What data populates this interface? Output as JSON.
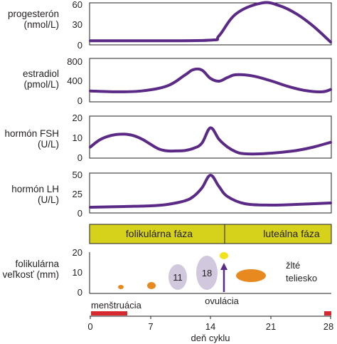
{
  "colors": {
    "curve": "#5b2a86",
    "phase_fill": "#d6d21b",
    "follicle_gray": "#d2c8dd",
    "follicle_orange": "#e8891f",
    "ovum_yellow": "#f2e21a",
    "menstruation_red": "#d8282f",
    "axis": "#231f20"
  },
  "chart_data": [
    {
      "type": "line",
      "ylabel_lines": [
        "progesterón",
        "(nmol/L)"
      ],
      "ylim": [
        0,
        60
      ],
      "yticks": [
        0,
        30,
        60
      ],
      "x": [
        0,
        7,
        14,
        15,
        17,
        20,
        22,
        24,
        26,
        28
      ],
      "y": [
        2,
        2,
        3,
        10,
        45,
        62,
        58,
        45,
        25,
        0
      ]
    },
    {
      "type": "line",
      "ylabel_lines": [
        "estradiol",
        "(pmol/L)"
      ],
      "ylim": [
        0,
        800
      ],
      "yticks": [
        0,
        400,
        800
      ],
      "x": [
        0,
        3,
        6,
        9,
        11,
        12,
        13,
        14,
        15,
        16,
        17,
        19,
        21,
        23,
        25,
        27,
        28
      ],
      "y": [
        190,
        170,
        190,
        300,
        530,
        650,
        640,
        460,
        400,
        480,
        540,
        510,
        410,
        290,
        200,
        170,
        220
      ]
    },
    {
      "type": "line",
      "ylabel_lines": [
        "hormón FSH",
        "(U/L)"
      ],
      "ylim": [
        0,
        20
      ],
      "yticks": [
        0,
        10,
        20
      ],
      "x": [
        0,
        1,
        2,
        3,
        4,
        5,
        6,
        7,
        8,
        9,
        10,
        11,
        12,
        13,
        14,
        15,
        16,
        17,
        18,
        20,
        22,
        24,
        26,
        28
      ],
      "y": [
        5,
        8.5,
        10.5,
        11.5,
        11.7,
        11,
        9.2,
        6.5,
        4,
        3,
        3,
        3.2,
        4.3,
        7,
        15,
        9,
        5,
        2.5,
        1.5,
        1.5,
        2.2,
        3.2,
        5,
        7.5
      ]
    },
    {
      "type": "line",
      "ylabel_lines": [
        "hormón LH",
        "(U/L)"
      ],
      "ylim": [
        0,
        50
      ],
      "yticks": [
        0,
        25,
        50
      ],
      "x": [
        0,
        4,
        7,
        9,
        11,
        12,
        13,
        14,
        15,
        16,
        18,
        21,
        24,
        28
      ],
      "y": [
        5,
        6,
        7,
        9,
        14,
        20,
        32,
        50,
        34,
        20,
        10,
        8,
        9,
        11
      ]
    },
    {
      "type": "diagram",
      "phases": [
        "folikulárna fáza",
        "luteálna fáza"
      ],
      "phase_boundary_day": 14,
      "ylabel_lines": [
        "folikulárna",
        "veľkosť (mm)"
      ],
      "ylim": [
        0,
        20
      ],
      "yticks": [
        0,
        10,
        20
      ],
      "follicles": [
        {
          "day": 3,
          "size_mm": 2.5,
          "label": ""
        },
        {
          "day": 6,
          "size_mm": 4,
          "label": ""
        },
        {
          "day": 9.5,
          "size_mm": 11,
          "label": "11"
        },
        {
          "day": 13.5,
          "size_mm": 18,
          "label": "18"
        },
        {
          "day": 16.8,
          "size_mm": 8,
          "label": ""
        }
      ],
      "ovulation_label": "ovulácia",
      "corpus_luteum_label_lines": [
        "žlté",
        "teliesko"
      ],
      "menstruation_label": "menštruácia",
      "menstruation_ranges": [
        [
          0,
          4
        ],
        [
          27,
          28
        ]
      ],
      "xlabel": "deň cyklu",
      "xticks": [
        0,
        7,
        14,
        21,
        28
      ],
      "xlim": [
        0,
        28
      ]
    }
  ]
}
